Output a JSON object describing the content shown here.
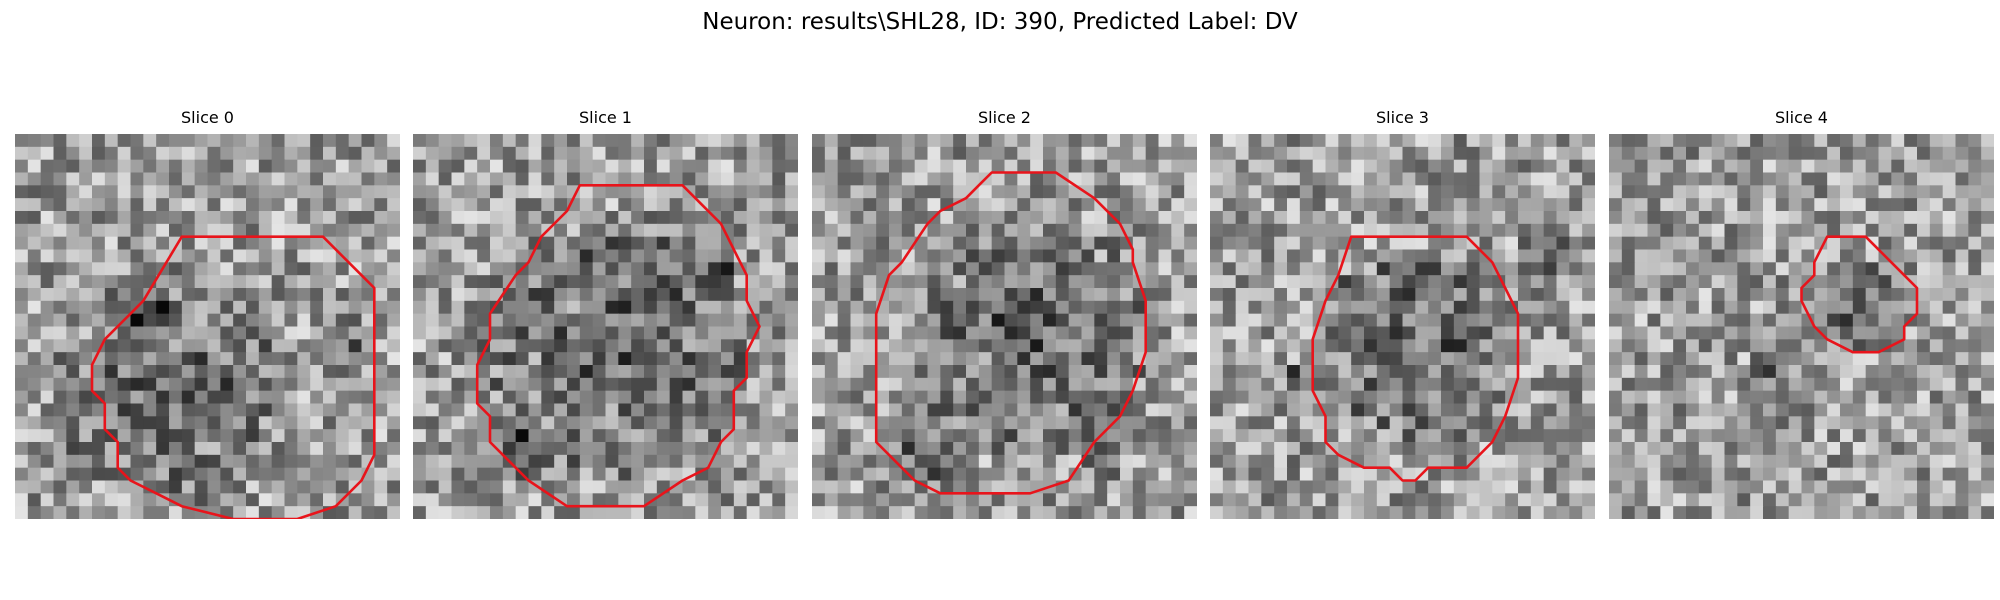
{
  "figure": {
    "title": "Neuron: results\\SHL28, ID: 390, Predicted Label: DV"
  },
  "panels": [
    {
      "title": "Slice 0",
      "seed": 11,
      "contour": [
        [
          10,
          3
        ],
        [
          21,
          3
        ],
        [
          24,
          6
        ],
        [
          25,
          7
        ],
        [
          25,
          20
        ],
        [
          24,
          22
        ],
        [
          22,
          24
        ],
        [
          19,
          25
        ],
        [
          14,
          25
        ],
        [
          10,
          24
        ],
        [
          8,
          23
        ],
        [
          6,
          22
        ],
        [
          5,
          21
        ],
        [
          5,
          19
        ],
        [
          4,
          18
        ],
        [
          4,
          16
        ],
        [
          3,
          15
        ],
        [
          3,
          13
        ],
        [
          4,
          11
        ],
        [
          6,
          9
        ],
        [
          7,
          8
        ]
      ],
      "dark": [
        [
          9,
          14,
          9.5
        ],
        [
          7,
          9,
          2.5
        ],
        [
          22,
          11,
          2.5
        ]
      ]
    },
    {
      "title": "Slice 1",
      "seed": 23,
      "contour": [
        [
          11,
          0
        ],
        [
          19,
          0
        ],
        [
          22,
          3
        ],
        [
          23,
          5
        ],
        [
          24,
          7
        ],
        [
          24,
          9
        ],
        [
          25,
          11
        ],
        [
          24,
          13
        ],
        [
          24,
          15
        ],
        [
          23,
          16
        ],
        [
          23,
          19
        ],
        [
          22,
          20
        ],
        [
          21,
          22
        ],
        [
          19,
          23
        ],
        [
          16,
          25
        ],
        [
          10,
          25
        ],
        [
          7,
          23
        ],
        [
          5,
          21
        ],
        [
          4,
          20
        ],
        [
          4,
          18
        ],
        [
          3,
          17
        ],
        [
          3,
          14
        ],
        [
          4,
          12
        ],
        [
          4,
          10
        ],
        [
          6,
          7
        ],
        [
          7,
          6
        ],
        [
          8,
          4
        ],
        [
          10,
          2
        ]
      ],
      "dark": [
        [
          13,
          12,
          11
        ],
        [
          6,
          20,
          2.5
        ],
        [
          21,
          7,
          2
        ]
      ]
    },
    {
      "title": "Slice 2",
      "seed": 37,
      "contour": [
        [
          12,
          0
        ],
        [
          17,
          0
        ],
        [
          20,
          2
        ],
        [
          22,
          4
        ],
        [
          23,
          6
        ],
        [
          23,
          7
        ],
        [
          24,
          10
        ],
        [
          24,
          14
        ],
        [
          23,
          17
        ],
        [
          22,
          19
        ],
        [
          20,
          21
        ],
        [
          18,
          24
        ],
        [
          15,
          25
        ],
        [
          8,
          25
        ],
        [
          6,
          24
        ],
        [
          5,
          23
        ],
        [
          3,
          21
        ],
        [
          3,
          19
        ],
        [
          3,
          17
        ],
        [
          3,
          14
        ],
        [
          3,
          11
        ],
        [
          4,
          8
        ],
        [
          5,
          7
        ],
        [
          7,
          4
        ],
        [
          8,
          3
        ],
        [
          10,
          2
        ],
        [
          11,
          1
        ]
      ],
      "dark": [
        [
          14,
          12,
          10
        ],
        [
          6,
          21,
          3
        ],
        [
          20,
          22,
          2
        ]
      ]
    },
    {
      "title": "Slice 3",
      "seed": 41,
      "contour": [
        [
          7,
          3
        ],
        [
          16,
          3
        ],
        [
          18,
          5
        ],
        [
          19,
          7
        ],
        [
          20,
          9
        ],
        [
          20,
          14
        ],
        [
          19,
          17
        ],
        [
          18,
          19
        ],
        [
          16,
          21
        ],
        [
          13,
          21
        ],
        [
          12,
          22
        ],
        [
          11,
          22
        ],
        [
          10,
          21
        ],
        [
          8,
          21
        ],
        [
          6,
          20
        ],
        [
          5,
          19
        ],
        [
          5,
          17
        ],
        [
          4,
          15
        ],
        [
          4,
          11
        ],
        [
          5,
          8
        ],
        [
          6,
          6
        ]
      ],
      "dark": [
        [
          12,
          11,
          8
        ],
        [
          22,
          4,
          2.5
        ],
        [
          3,
          14,
          2
        ]
      ]
    },
    {
      "title": "Slice 4",
      "seed": 53,
      "contour": [
        [
          8,
          0
        ],
        [
          11,
          0
        ],
        [
          13,
          2
        ],
        [
          14,
          3
        ],
        [
          15,
          4
        ],
        [
          15,
          6
        ],
        [
          14,
          7
        ],
        [
          14,
          8
        ],
        [
          12,
          9
        ],
        [
          10,
          9
        ],
        [
          8,
          8
        ],
        [
          7,
          7
        ],
        [
          6,
          5
        ],
        [
          6,
          4
        ],
        [
          7,
          3
        ],
        [
          7,
          2
        ]
      ],
      "dark": [
        [
          10,
          5,
          3.5
        ],
        [
          3,
          10,
          2
        ]
      ]
    }
  ]
}
